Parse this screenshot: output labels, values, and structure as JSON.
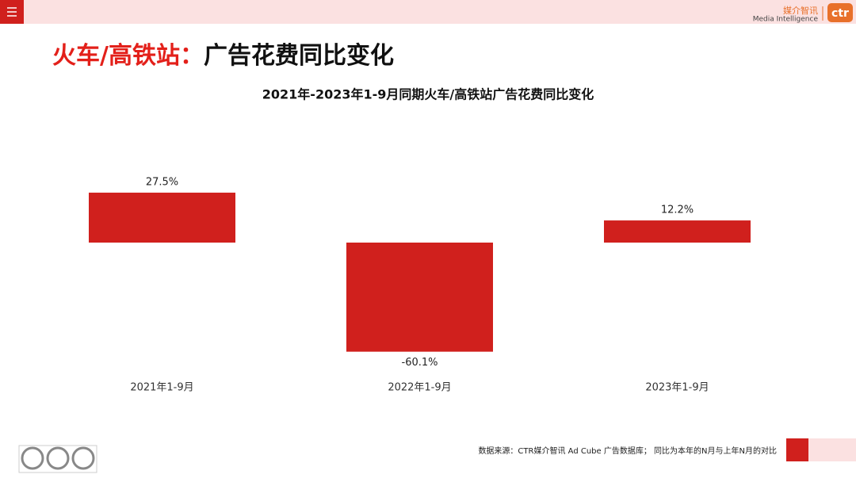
{
  "header": {
    "title_lead": "火车/高铁站：",
    "title_rest": "广告花费同比变化",
    "brand_cn": "媒介智讯",
    "brand_en": "Media Intelligence",
    "brand_logo": "ctr"
  },
  "chart_data": {
    "type": "bar",
    "title": "2021年-2023年1-9月同期火车/高铁站广告花费同比变化",
    "categories": [
      "2021年1-9月",
      "2022年1-9月",
      "2023年1-9月"
    ],
    "values": [
      27.5,
      -60.1,
      12.2
    ],
    "value_labels": [
      "27.5%",
      "-60.1%",
      "12.2%"
    ],
    "color": "#d0201d"
  },
  "footer": {
    "source": "数据来源：CTR媒介智讯 Ad Cube 广告数据库；  同比为本年的N月与上年N月的对比"
  }
}
